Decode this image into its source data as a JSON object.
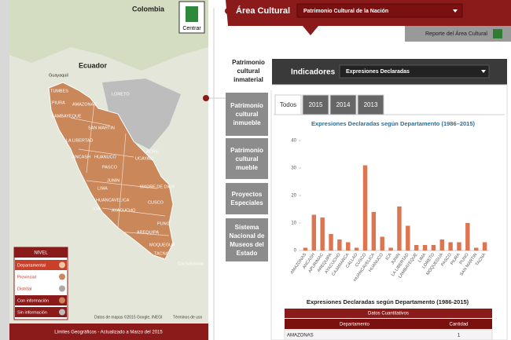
{
  "map": {
    "labels": [
      "Colombia",
      "Ecuador",
      "Guayaquil",
      "TUMBES",
      "AMAZONAS",
      "LORETO",
      "PIURA",
      "LAMBAYEQUE",
      "SAN MARTIN",
      "LA LIBERTAD",
      "ANCASH",
      "HUANUCO",
      "UCAYALI",
      "PASCO",
      "JUNIN",
      "LIMA",
      "MADRE DE DIOS",
      "HUANCAVELICA",
      "CUSCO",
      "AYACUCHO",
      "ICA",
      "PUNO",
      "AREQUIPA",
      "MOQUEGUA",
      "TACNA",
      "ACRE",
      "Cochabamba"
    ],
    "center_button": "Centrar",
    "legend": {
      "title": "NIVEL",
      "items": [
        "Departamental",
        "Provincial",
        "Distrital",
        "Con información",
        "Sin información"
      ]
    },
    "attribution": "Datos de mapas ©2015 Google, INEGI",
    "terms": "Términos de uso",
    "footer": "Límites Geográficos - Actualizado a Marzo del 2015"
  },
  "header": {
    "title": "Área Cultural",
    "selection": "Patrimonio Cultural de la Nación",
    "report": "Reporte del Área Cultural"
  },
  "side_tabs": [
    "Patrimonio cultural inmaterial",
    "Patrimonio cultural inmueble",
    "Patrimonio cultural mueble",
    "Proyectos Especiales",
    "Sistema Nacional de Museos del Estado"
  ],
  "indicators": {
    "title": "Indicadores",
    "selection": "Expresiones Declaradas",
    "tabs": [
      "Todos",
      "2015",
      "2014",
      "2013"
    ]
  },
  "chart_data": {
    "type": "bar",
    "title": "Expresiones Declaradas según Departamento (1986–2015)",
    "categories": [
      "AMAZONAS",
      "ANCASH",
      "APURIMAC",
      "AREQUIPA",
      "AYACUCHO",
      "CAJAMARCA",
      "CALLAO",
      "CUSCO",
      "HUANCAVELICA",
      "HUANUCO",
      "ICA",
      "JUNIN",
      "LA LIBERTAD",
      "LAMBAYEQUE",
      "LIMA",
      "LORETO",
      "MOQUEGUA",
      "PASCO",
      "PIURA",
      "PUNO",
      "SAN MARTIN",
      "TACNA"
    ],
    "values": [
      1,
      13,
      12,
      6,
      4,
      3,
      1,
      31,
      14,
      5,
      1,
      16,
      9,
      2,
      2,
      2,
      4,
      3,
      3,
      10,
      1,
      3
    ],
    "color": "#dd7650",
    "ylim": [
      0,
      40
    ],
    "yticks": [
      0,
      10,
      20,
      30,
      40
    ],
    "grid": false
  },
  "table": {
    "title": "Expresiones Declaradas según Departamento (1986-2015)",
    "group_header": "Datos Cuantitativos",
    "columns": [
      "Departamento",
      "Cantidad"
    ],
    "rows": [
      [
        "AMAZONAS",
        "1"
      ]
    ]
  }
}
